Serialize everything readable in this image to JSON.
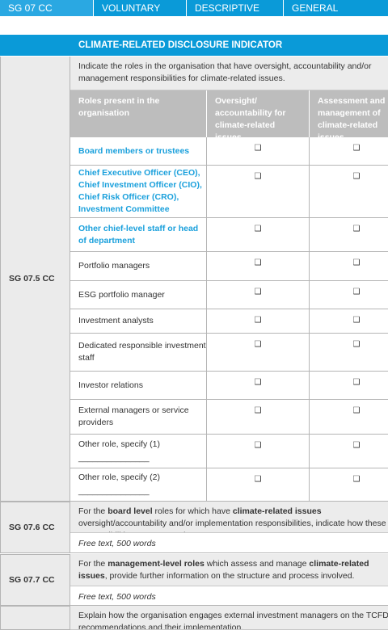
{
  "tabs": [
    "SG 07 CC",
    "VOLUNTARY",
    "DESCRIPTIVE",
    "GENERAL"
  ],
  "indicator_header": "CLIMATE-RELATED DISCLOSURE INDICATOR",
  "sections": [
    {
      "id": "SG 07.5 CC",
      "text": [
        {
          "text": "Indicate the roles in the organisation that have oversight, accountability and/or management responsibilities for climate-related issues.",
          "bold": false
        }
      ],
      "table": {
        "headers": [
          "Roles present in the organisation",
          "Oversight/ accountability for climate-related issues",
          "Assessment and management of climate-related issues"
        ],
        "rows": [
          {
            "role": "Board members or trustees",
            "highlight": true,
            "cells": [
              "❑",
              "❑"
            ]
          },
          {
            "role": "Chief Executive Officer (CEO), Chief Investment Officer (CIO), Chief Risk Officer (CRO), Investment Committee",
            "highlight": true,
            "cells": [
              "❑",
              "❑"
            ]
          },
          {
            "role": "Other chief-level staff or head of department",
            "highlight": true,
            "cells": [
              "❑",
              "❑"
            ]
          },
          {
            "role": "Portfolio managers",
            "highlight": false,
            "cells": [
              "❑",
              "❑"
            ]
          },
          {
            "role": "ESG portfolio manager",
            "highlight": false,
            "cells": [
              "❑",
              "❑"
            ]
          },
          {
            "role": "Investment analysts",
            "highlight": false,
            "cells": [
              "❑",
              "❑"
            ]
          },
          {
            "role": "Dedicated responsible investment staff",
            "highlight": false,
            "cells": [
              "❑",
              "❑"
            ]
          },
          {
            "role": "Investor relations",
            "highlight": false,
            "cells": [
              "❑",
              "❑"
            ]
          },
          {
            "role": "External managers or service providers",
            "highlight": false,
            "cells": [
              "❑",
              "❑"
            ]
          },
          {
            "role": "Other role, specify (1)",
            "blank": "_______________",
            "highlight": false,
            "cells": [
              "❑",
              "❑"
            ]
          },
          {
            "role": "Other role, specify (2)",
            "blank": "_______________",
            "highlight": false,
            "cells": [
              "❑",
              "❑"
            ]
          }
        ]
      }
    },
    {
      "id": "SG 07.6 CC",
      "text": [
        {
          "text": "For the ",
          "bold": false
        },
        {
          "text": "board level",
          "bold": true
        },
        {
          "text": " roles for which have ",
          "bold": false
        },
        {
          "text": "climate-related issues",
          "bold": true
        },
        {
          "text": " oversight/accountability and/or implementation responsibilities, indicate how these responsibilities are executed.",
          "bold": false
        }
      ],
      "free_text": "Free text, 500 words"
    },
    {
      "id": "SG 07.7 CC",
      "text": [
        {
          "text": "For the ",
          "bold": false
        },
        {
          "text": "management-level roles",
          "bold": true
        },
        {
          "text": " which assess and manage ",
          "bold": false
        },
        {
          "text": "climate-related issues",
          "bold": true
        },
        {
          "text": ", provide further information on the structure and process involved.",
          "bold": false
        }
      ],
      "free_text": "Free text, 500 words"
    },
    {
      "text": [
        {
          "text": "Explain how the organisation engages external investment managers on the TCFD recommendations and their implementation.",
          "bold": false
        }
      ]
    }
  ]
}
